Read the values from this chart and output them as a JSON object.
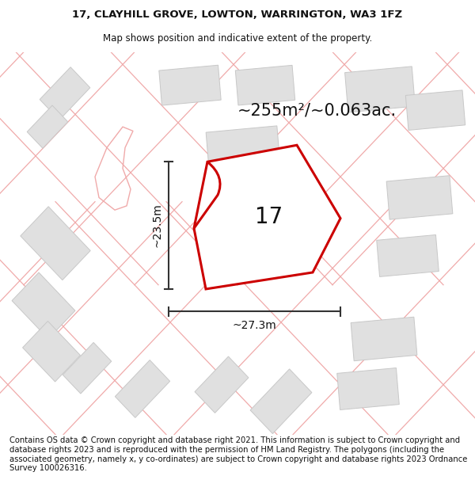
{
  "title_line1": "17, CLAYHILL GROVE, LOWTON, WARRINGTON, WA3 1FZ",
  "title_line2": "Map shows position and indicative extent of the property.",
  "area_text": "~255m²/~0.063ac.",
  "number_label": "17",
  "dim_height": "~23.5m",
  "dim_width": "~27.3m",
  "footer_text": "Contains OS data © Crown copyright and database right 2021. This information is subject to Crown copyright and database rights 2023 and is reproduced with the permission of HM Land Registry. The polygons (including the associated geometry, namely x, y co-ordinates) are subject to Crown copyright and database rights 2023 Ordnance Survey 100026316.",
  "bg_color": "#f2f2f2",
  "plot_fill": "#ffffff",
  "plot_edge": "#cc0000",
  "dim_color": "#333333",
  "building_fill": "#e0e0e0",
  "building_edge": "#c8c8c8",
  "pink_line": "#f0aaaa",
  "gray_line": "#c0c0c0",
  "title_fontsize": 9.5,
  "subtitle_fontsize": 8.5,
  "area_fontsize": 15,
  "number_fontsize": 20,
  "dim_fontsize": 10,
  "footer_fontsize": 7.2
}
